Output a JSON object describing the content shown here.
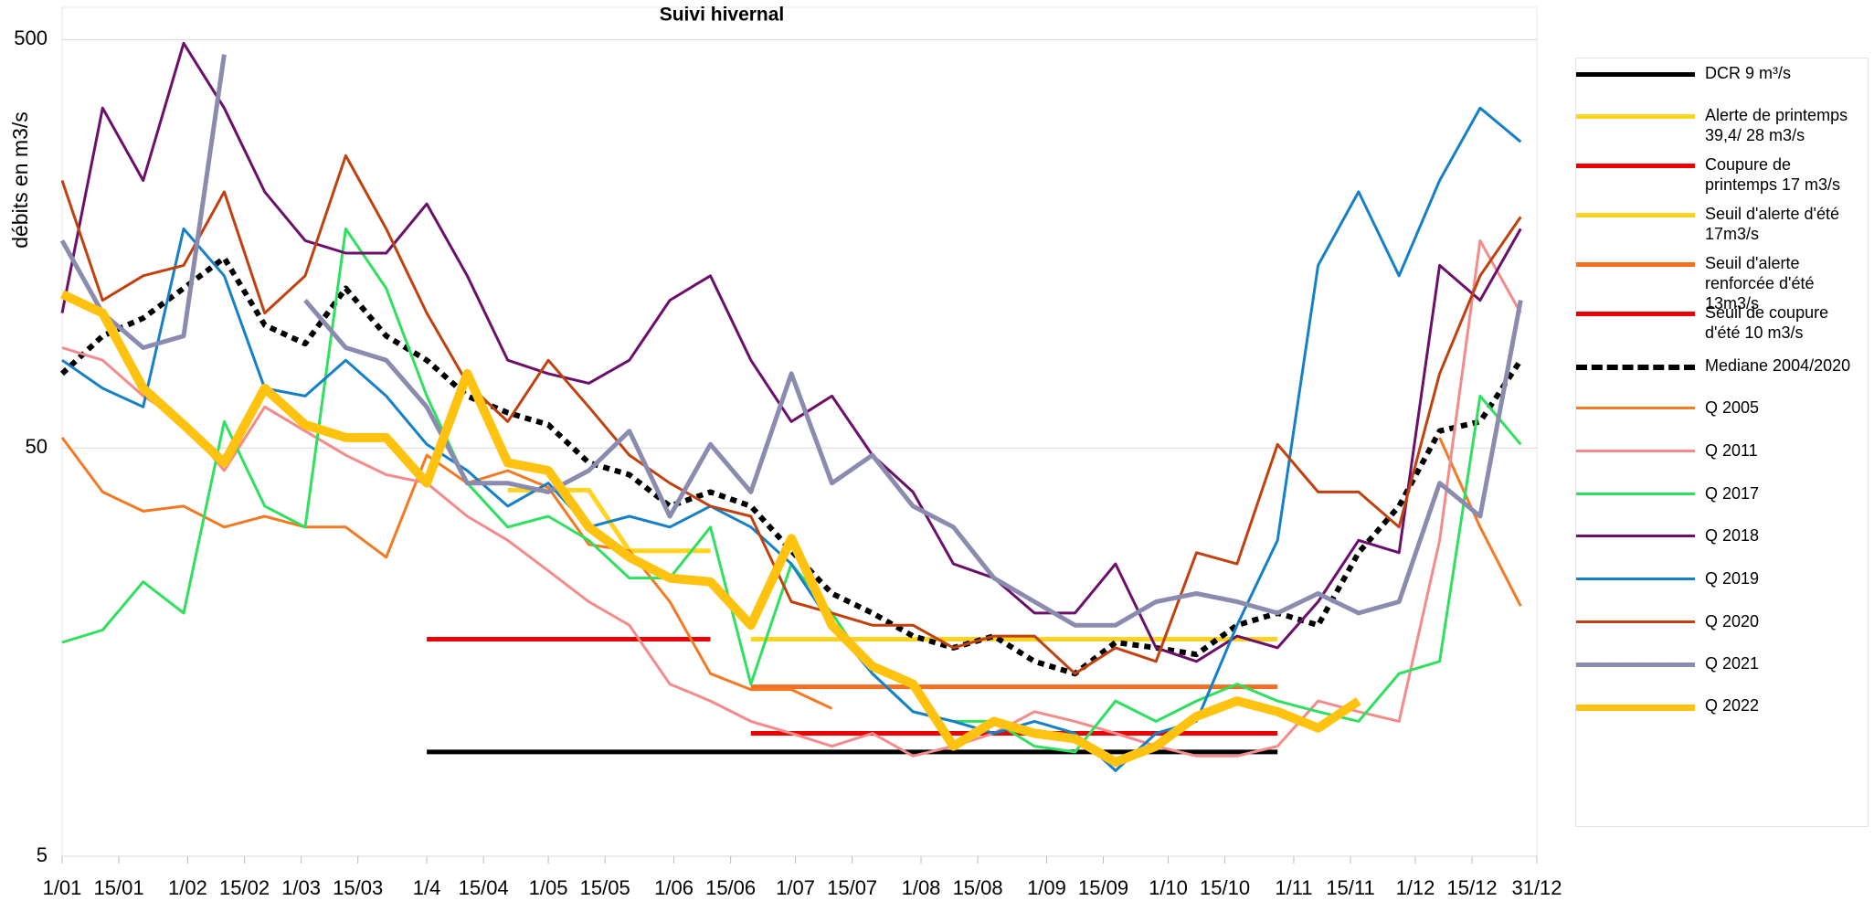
{
  "chart_data": {
    "type": "line",
    "title": "Suivi hivernal",
    "y_label": "débits en m3/s",
    "log_scale": true,
    "grid": true,
    "x": [
      1,
      11,
      21,
      31,
      41,
      51,
      61,
      71,
      81,
      91,
      101,
      111,
      121,
      131,
      141,
      151,
      161,
      171,
      181,
      191,
      201,
      211,
      221,
      231,
      241,
      251,
      261,
      271,
      281,
      291,
      301,
      311,
      321,
      331,
      341,
      351,
      361
    ],
    "xlim": [
      1,
      365
    ],
    "xticks": [
      {
        "value": 1,
        "label": "1/01"
      },
      {
        "value": 15,
        "label": "15/01"
      },
      {
        "value": 32,
        "label": "1/02"
      },
      {
        "value": 46,
        "label": "15/02"
      },
      {
        "value": 60,
        "label": "1/03"
      },
      {
        "value": 74,
        "label": "15/03"
      },
      {
        "value": 91,
        "label": "1/4"
      },
      {
        "value": 105,
        "label": "15/04"
      },
      {
        "value": 121,
        "label": "1/05"
      },
      {
        "value": 135,
        "label": "15/05"
      },
      {
        "value": 152,
        "label": "1/06"
      },
      {
        "value": 166,
        "label": "15/06"
      },
      {
        "value": 182,
        "label": "1/07"
      },
      {
        "value": 196,
        "label": "15/07"
      },
      {
        "value": 213,
        "label": "1/08"
      },
      {
        "value": 227,
        "label": "15/08"
      },
      {
        "value": 244,
        "label": "1/09"
      },
      {
        "value": 258,
        "label": "15/09"
      },
      {
        "value": 274,
        "label": "1/10"
      },
      {
        "value": 288,
        "label": "15/10"
      },
      {
        "value": 305,
        "label": "1/11"
      },
      {
        "value": 319,
        "label": "15/11"
      },
      {
        "value": 335,
        "label": "1/12"
      },
      {
        "value": 349,
        "label": "15/12"
      },
      {
        "value": 365,
        "label": "31/12"
      }
    ],
    "ylim": [
      5,
      600
    ],
    "yticks": [
      5,
      50,
      500
    ],
    "series": [
      {
        "name": "DCR 9 m³/s",
        "color": "#000000",
        "line_width": 5,
        "values": [
          null,
          null,
          null,
          null,
          null,
          null,
          null,
          null,
          null,
          9,
          9,
          9,
          9,
          9,
          9,
          9,
          9,
          9,
          9,
          9,
          9,
          9,
          9,
          9,
          9,
          9,
          9,
          9,
          9,
          9,
          9,
          null,
          null,
          null,
          null,
          null,
          null
        ]
      },
      {
        "name": "Alerte de printemps 39,4/ 28 m3/s",
        "color": "#ffd320",
        "line_width": 5,
        "values": [
          null,
          null,
          null,
          null,
          null,
          null,
          null,
          null,
          null,
          null,
          null,
          39.4,
          39.4,
          39.4,
          28,
          28,
          28,
          null,
          null,
          null,
          null,
          null,
          null,
          null,
          null,
          null,
          null,
          null,
          null,
          null,
          null,
          null,
          null,
          null,
          null,
          null,
          null
        ]
      },
      {
        "name": "Coupure de printemps 17 m3/s",
        "color": "#ee0000",
        "line_width": 5,
        "values": [
          null,
          null,
          null,
          null,
          null,
          null,
          null,
          null,
          null,
          17,
          17,
          17,
          17,
          17,
          17,
          17,
          17,
          null,
          null,
          null,
          null,
          null,
          null,
          null,
          null,
          null,
          null,
          null,
          null,
          null,
          null,
          null,
          null,
          null,
          null,
          null,
          null
        ]
      },
      {
        "name": "Seuil d'alerte d'été 17m3/s",
        "color": "#ffd320",
        "line_width": 5,
        "values": [
          null,
          null,
          null,
          null,
          null,
          null,
          null,
          null,
          null,
          null,
          null,
          null,
          null,
          null,
          null,
          null,
          null,
          17,
          17,
          17,
          17,
          17,
          17,
          17,
          17,
          17,
          17,
          17,
          17,
          17,
          17,
          null,
          null,
          null,
          null,
          null,
          null
        ]
      },
      {
        "name": "Seuil d'alerte renforcée d'été 13m3/s",
        "color": "#f36f21",
        "line_width": 5,
        "values": [
          null,
          null,
          null,
          null,
          null,
          null,
          null,
          null,
          null,
          null,
          null,
          null,
          null,
          null,
          null,
          null,
          null,
          13,
          13,
          13,
          13,
          13,
          13,
          13,
          13,
          13,
          13,
          13,
          13,
          13,
          13,
          null,
          null,
          null,
          null,
          null,
          null
        ]
      },
      {
        "name": "Seuil de coupure d'été 10 m3/s",
        "color": "#ee0000",
        "line_width": 5,
        "values": [
          null,
          null,
          null,
          null,
          null,
          null,
          null,
          null,
          null,
          null,
          null,
          null,
          null,
          null,
          null,
          null,
          null,
          10,
          10,
          10,
          10,
          10,
          10,
          10,
          10,
          10,
          10,
          10,
          10,
          10,
          10,
          null,
          null,
          null,
          null,
          null,
          null
        ]
      },
      {
        "name": "Mediane 2004/2020",
        "color": "#000000",
        "line_width": 6,
        "dashed": true,
        "values": [
          76,
          94,
          104,
          123,
          146,
          100,
          90,
          123,
          94,
          82,
          67,
          61,
          57,
          46,
          43,
          36,
          39,
          36,
          28,
          22,
          19.7,
          17.3,
          16.2,
          17.3,
          15,
          14,
          16.7,
          16.2,
          15.6,
          18.4,
          19.7,
          18.4,
          27.7,
          36,
          55,
          58,
          82
        ]
      },
      {
        "name": "Q 2005",
        "color": "#f47920",
        "line_width": 3,
        "values": [
          53,
          39,
          35,
          36,
          32,
          34,
          32,
          32,
          27,
          48,
          41,
          44,
          40,
          29,
          28,
          21,
          14,
          12.8,
          12.8,
          11.5,
          null,
          null,
          null,
          null,
          null,
          null,
          null,
          null,
          null,
          null,
          null,
          null,
          null,
          null,
          53,
          32,
          20.5
        ]
      },
      {
        "name": "Q 2011",
        "color": "#f58a8a",
        "line_width": 3,
        "values": [
          88,
          82,
          67,
          58,
          44,
          63,
          55,
          48,
          43,
          41,
          34,
          29.7,
          25,
          21,
          18.4,
          13.2,
          12,
          10.7,
          10,
          9.3,
          10,
          8.8,
          9.3,
          10,
          11.3,
          10.7,
          10,
          9.3,
          8.8,
          8.8,
          9.3,
          12,
          11.3,
          10.7,
          29.7,
          161,
          107
        ]
      },
      {
        "name": "Q 2017",
        "color": "#2ee05e",
        "line_width": 3,
        "values": [
          16.7,
          17.9,
          23.5,
          19.7,
          58,
          36,
          32,
          172,
          123,
          67,
          41,
          32,
          34,
          29.7,
          24,
          24,
          32,
          13.2,
          26,
          19.7,
          14,
          11.3,
          10.7,
          10.7,
          9.3,
          9,
          12,
          10.7,
          12,
          13.2,
          12,
          11.3,
          10.7,
          14,
          15,
          67,
          51
        ]
      },
      {
        "name": "Q 2018",
        "color": "#6b0f6b",
        "line_width": 3,
        "values": [
          107,
          340,
          226,
          490,
          340,
          212,
          161,
          150,
          150,
          198,
          132,
          82,
          76,
          72,
          82,
          115,
          132,
          82,
          58,
          67,
          48,
          39,
          26,
          24,
          19.7,
          19.7,
          26,
          16.2,
          15,
          17.3,
          16.2,
          21,
          29.7,
          27.7,
          140,
          115,
          172
        ]
      },
      {
        "name": "Q 2019",
        "color": "#1580c8",
        "line_width": 3,
        "values": [
          82,
          70,
          63,
          172,
          132,
          70,
          67,
          82,
          67,
          51,
          44,
          36,
          41,
          32,
          34,
          32,
          36,
          32,
          26,
          18.4,
          14,
          11.3,
          10.7,
          10,
          10.7,
          10,
          8.1,
          10,
          10.7,
          18.4,
          29.7,
          140,
          212,
          132,
          226,
          340,
          281
        ]
      },
      {
        "name": "Q 2020",
        "color": "#c1410e",
        "line_width": 3,
        "values": [
          226,
          115,
          132,
          140,
          212,
          107,
          132,
          260,
          172,
          107,
          72,
          58,
          82,
          63,
          48,
          41,
          36,
          34,
          21,
          19.7,
          18.4,
          18.4,
          16.2,
          17.3,
          17.3,
          14,
          16.2,
          15,
          27.7,
          26,
          51,
          39,
          39,
          32,
          76,
          132,
          184
        ]
      },
      {
        "name": "Q 2021",
        "color": "#8b8bb0",
        "line_width": 5,
        "values": [
          161,
          107,
          88,
          94,
          460,
          null,
          115,
          88,
          82,
          63,
          41,
          41,
          39,
          44,
          55,
          34,
          51,
          39,
          76,
          41,
          48,
          36,
          32,
          24,
          21,
          18.4,
          18.4,
          21,
          22,
          21,
          19.7,
          22,
          19.7,
          21,
          41,
          34,
          115
        ]
      },
      {
        "name": "Q 2022",
        "color": "#ffc20e",
        "line_width": 10,
        "values": [
          119,
          107,
          70,
          57,
          46,
          70,
          57,
          53,
          53,
          41,
          76,
          46,
          44,
          32,
          27,
          24,
          23.5,
          18.4,
          30,
          18.4,
          14.6,
          13.2,
          9.3,
          10.7,
          10,
          9.7,
          8.5,
          9.3,
          11,
          12,
          11.3,
          10.3,
          12,
          null,
          null,
          null,
          null
        ]
      }
    ]
  }
}
